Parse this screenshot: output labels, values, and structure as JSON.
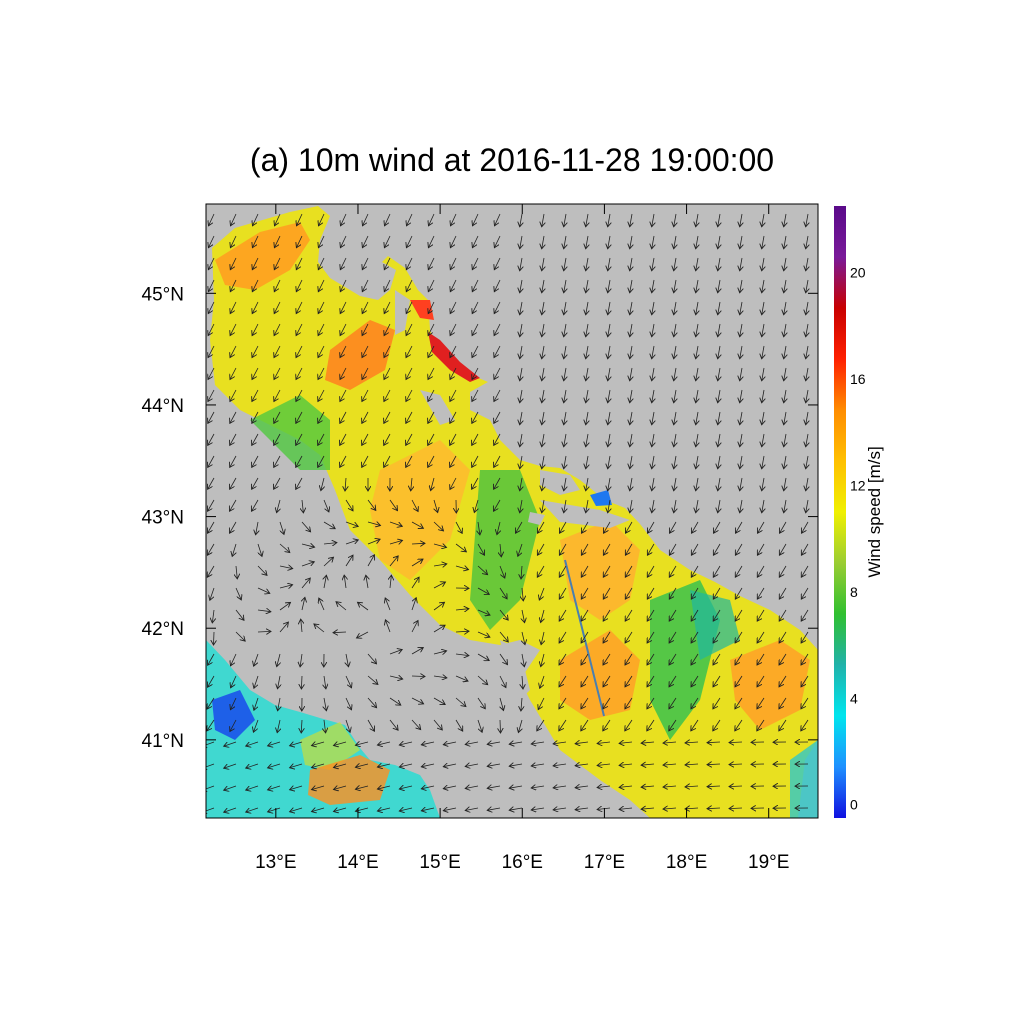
{
  "title": "(a) 10m wind at 2016-11-28 19:00:00",
  "map": {
    "lon_range": [
      12.15,
      19.6
    ],
    "lat_range": [
      40.3,
      45.8
    ],
    "lon_ticks": [
      {
        "value": 13,
        "label": "13°E"
      },
      {
        "value": 14,
        "label": "14°E"
      },
      {
        "value": 15,
        "label": "15°E"
      },
      {
        "value": 16,
        "label": "16°E"
      },
      {
        "value": 17,
        "label": "17°E"
      },
      {
        "value": 18,
        "label": "18°E"
      },
      {
        "value": 19,
        "label": "19°E"
      }
    ],
    "lat_ticks": [
      {
        "value": 45,
        "label": "45°N"
      },
      {
        "value": 44,
        "label": "44°N"
      },
      {
        "value": 43,
        "label": "43°N"
      },
      {
        "value": 42,
        "label": "42°N"
      },
      {
        "value": 41,
        "label": "41°N"
      }
    ],
    "land_color": "#bebebe",
    "field": "10m wind speed over sea (Adriatic), vectors over entire domain"
  },
  "colorbar": {
    "title": "Wind speed [m/s]",
    "range": [
      -0.5,
      22.5
    ],
    "ticks": [
      {
        "value": 0,
        "label": "0"
      },
      {
        "value": 4,
        "label": "4"
      },
      {
        "value": 8,
        "label": "8"
      },
      {
        "value": 12,
        "label": "12"
      },
      {
        "value": 16,
        "label": "16"
      },
      {
        "value": 20,
        "label": "20"
      }
    ],
    "colors": [
      "#1010e0",
      "#1e90ff",
      "#00e5ee",
      "#20b2aa",
      "#30c030",
      "#9acd32",
      "#f0f000",
      "#ffc000",
      "#ff8c00",
      "#ff2000",
      "#c80000",
      "#7a1a9a",
      "#5a0a8a"
    ]
  }
}
